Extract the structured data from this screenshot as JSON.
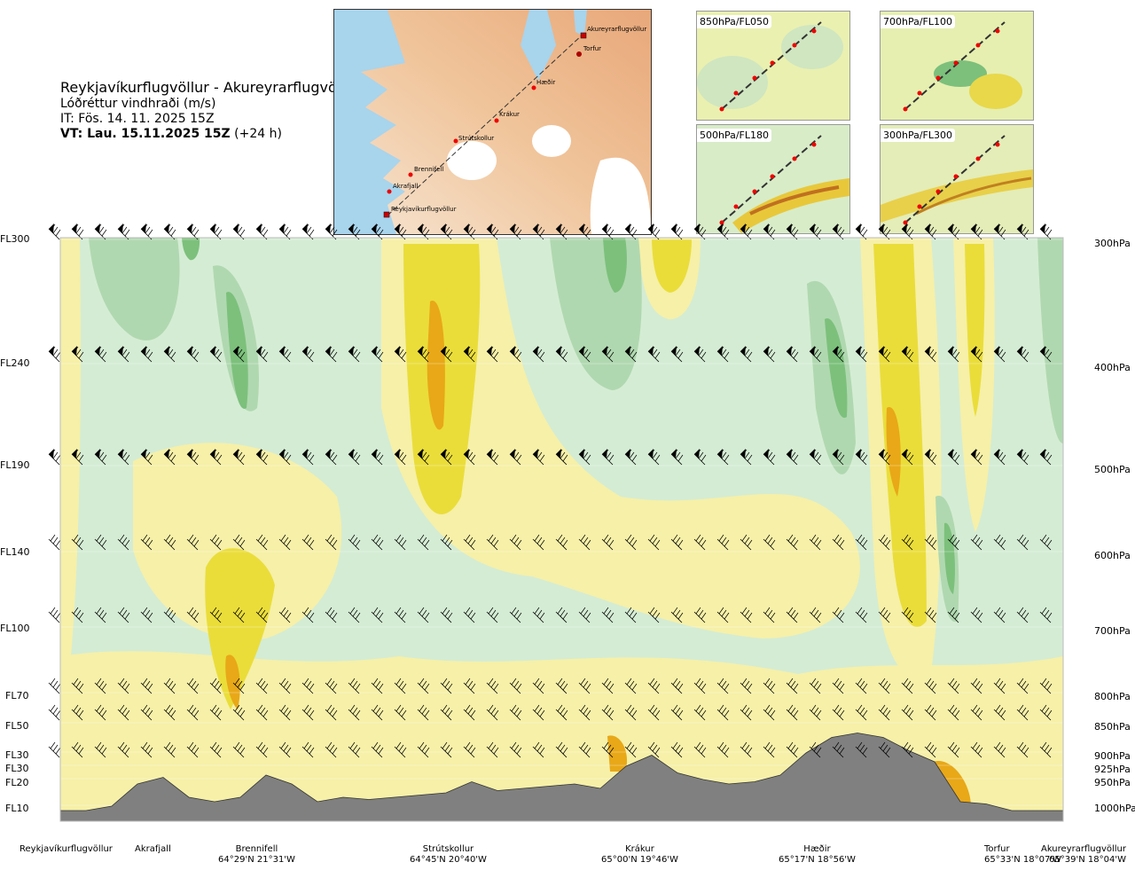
{
  "title": {
    "route": "Reykjavíkurflugvöllur - Akureyrarflugvöllur",
    "variable": "Lóðréttur vindhraði (m/s)",
    "it": "IT: Fös. 14. 11. 2025 15Z",
    "vt_bold": "VT: Lau. 15.11.2025 15Z",
    "vt_rest": "(+24 h)"
  },
  "map_labels": {
    "akureyri": "Akureyrarflugvöllur",
    "torfur": "Torfur",
    "haedir": "Hæðir",
    "krakur": "Krákur",
    "strutskollur": "Strútskollur",
    "brennifell": "Brennifell",
    "akrafjall": "Akrafjall",
    "reykjavik": "Reykjavíkurflugvöllur"
  },
  "mini_maps": [
    {
      "label": "850hPa/FL050"
    },
    {
      "label": "700hPa/FL100"
    },
    {
      "label": "500hPa/FL180"
    },
    {
      "label": "300hPa/FL300"
    }
  ],
  "fl_levels": [
    "FL300",
    "FL240",
    "FL190",
    "FL140",
    "FL100",
    "FL70",
    "FL50",
    "FL30",
    "FL30",
    "FL20",
    "FL10"
  ],
  "hpa_levels": [
    "300hPa",
    "400hPa",
    "500hPa",
    "600hPa",
    "700hPa",
    "800hPa",
    "850hPa",
    "900hPa",
    "925hPa",
    "950hPa",
    "1000hPa"
  ],
  "waypoints": [
    {
      "name": "Reykjavíkurflugvöllur",
      "coord": ""
    },
    {
      "name": "Akrafjall",
      "coord": ""
    },
    {
      "name": "Brennifell",
      "coord": "64°29'N 21°31'W"
    },
    {
      "name": "Strútskollur",
      "coord": "64°45'N 20°40'W"
    },
    {
      "name": "Krákur",
      "coord": "65°00'N 19°46'W"
    },
    {
      "name": "Hæðir",
      "coord": "65°17'N 18°56'W"
    },
    {
      "name": "Torfur",
      "coord": "65°33'N 18°07'W"
    },
    {
      "name": "Akureyrarflugvöllur",
      "coord": "65°39'N 18°04'W"
    }
  ],
  "chart_data": {
    "type": "heatmap",
    "title": "Lóðréttur vindhraði (m/s)",
    "x_axis": "route waypoints",
    "y_levels_hpa": [
      300,
      400,
      500,
      600,
      700,
      800,
      850,
      900,
      925,
      950,
      1000
    ],
    "colors": {
      "downdraft_weak": "#d4ecd4",
      "downdraft_mid": "#b0d8b0",
      "downdraft_strong": "#7cc07c",
      "updraft_weak": "#f6f0a8",
      "updraft_mid": "#eadd3a",
      "updraft_strong": "#e8a818",
      "terrain": "#808080"
    },
    "terrain_m": [
      0,
      0,
      20,
      120,
      150,
      60,
      40,
      60,
      160,
      120,
      40,
      60,
      50,
      60,
      70,
      80,
      130,
      90,
      100,
      110,
      120,
      100,
      200,
      250,
      170,
      140,
      120,
      130,
      160,
      260,
      330,
      350,
      330,
      270,
      220,
      40,
      30,
      0,
      0,
      0
    ]
  }
}
